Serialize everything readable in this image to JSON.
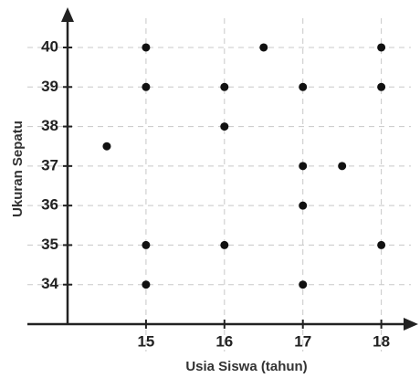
{
  "chart_data": {
    "type": "scatter",
    "x_label": "Usia Siswa (tahun)",
    "y_label": "Ukuran Sepatu",
    "x": [
      15,
      16.5,
      18,
      15,
      16,
      17,
      18,
      16,
      14.5,
      17,
      17.5,
      17,
      15,
      16,
      18,
      15,
      17
    ],
    "values": [
      40,
      40,
      40,
      39,
      39,
      39,
      39,
      38,
      37.5,
      37,
      37,
      36,
      35,
      35,
      35,
      34,
      34
    ],
    "color": "#111111",
    "xlim": [
      14,
      18.47
    ],
    "ylim": [
      33,
      40.97
    ],
    "xticks": [
      15,
      16,
      17,
      18
    ],
    "yticks": [
      34,
      35,
      36,
      37,
      38,
      39,
      40
    ],
    "grid": true
  }
}
